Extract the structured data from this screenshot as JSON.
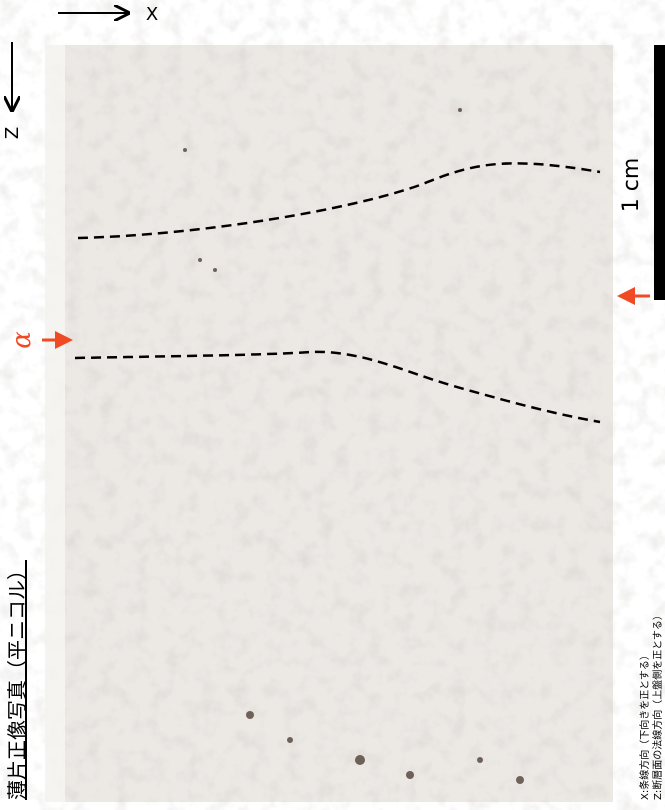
{
  "title": "薄片正像写真（平ニコル）",
  "labels": {
    "x_axis": "X",
    "z_axis": "Z",
    "scale": "1 cm",
    "alpha": "α"
  },
  "notes": [
    "X:条線方向（下向きを正とする）",
    "Z:断層面の法線方向（上盤側を正とする）"
  ]
}
